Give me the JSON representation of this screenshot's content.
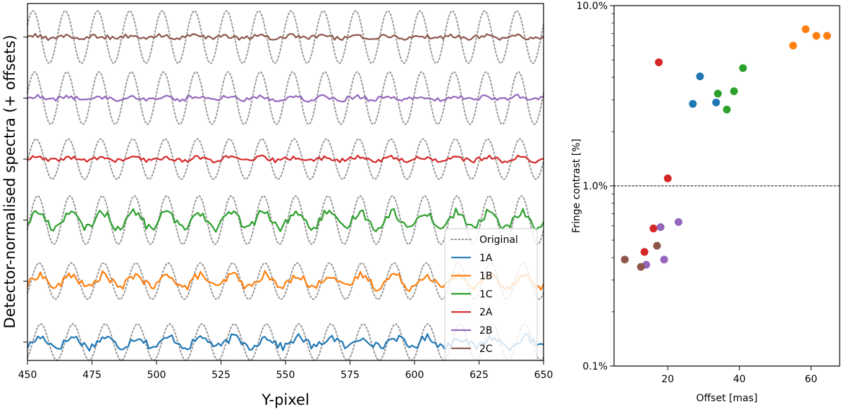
{
  "chart_data": [
    {
      "type": "line",
      "xlabel": "Y-pixel",
      "ylabel": "Detector-normalised spectra (+ offsets)",
      "xlim": [
        450,
        650
      ],
      "xticks": [
        450,
        475,
        500,
        525,
        550,
        575,
        600,
        625,
        650
      ],
      "yticks_labeled": false,
      "fringe_period_pixels": 12.5,
      "legend_position": "lower-right",
      "legend_items": [
        {
          "label": "Original",
          "color": "#999999",
          "style": "dotted"
        },
        {
          "label": "1A",
          "color": "#1f77b4",
          "style": "solid"
        },
        {
          "label": "1B",
          "color": "#ff7f0e",
          "style": "solid"
        },
        {
          "label": "1C",
          "color": "#2ca02c",
          "style": "solid"
        },
        {
          "label": "2A",
          "color": "#d62728",
          "style": "solid"
        },
        {
          "label": "2B",
          "color": "#9467bd",
          "style": "solid"
        },
        {
          "label": "2C",
          "color": "#8c564b",
          "style": "solid"
        }
      ],
      "series": [
        {
          "name": "1A",
          "offset": 0,
          "original_amplitude": 0.045,
          "corrected_amplitude": 0.012,
          "color": "#1f77b4"
        },
        {
          "name": "1B",
          "offset": 1,
          "original_amplitude": 0.045,
          "corrected_amplitude": 0.016,
          "color": "#ff7f0e"
        },
        {
          "name": "1C",
          "offset": 2,
          "original_amplitude": 0.06,
          "corrected_amplitude": 0.02,
          "color": "#2ca02c"
        },
        {
          "name": "2A",
          "offset": 3,
          "original_amplitude": 0.05,
          "corrected_amplitude": 0.004,
          "color": "#d62728"
        },
        {
          "name": "2B",
          "offset": 4,
          "original_amplitude": 0.065,
          "corrected_amplitude": 0.004,
          "color": "#9467bd"
        },
        {
          "name": "2C",
          "offset": 5,
          "original_amplitude": 0.065,
          "corrected_amplitude": 0.003,
          "color": "#8c564b"
        }
      ]
    },
    {
      "type": "scatter",
      "xlabel": "Offset [mas]",
      "ylabel": "Fringe contrast [%]",
      "xlim": [
        5,
        68
      ],
      "ylim": [
        0.1,
        10
      ],
      "yscale": "log",
      "xticks": [
        20,
        40,
        60
      ],
      "yticks": [
        {
          "value": 0.1,
          "label": "0.1%"
        },
        {
          "value": 1,
          "label": "1.0%"
        },
        {
          "value": 10,
          "label": "10.0%"
        }
      ],
      "reference_line": {
        "y": 1.0,
        "style": "dotted",
        "color": "#808080"
      },
      "series": [
        {
          "name": "1A",
          "color": "#1f77b4",
          "points": [
            [
              27,
              2.85
            ],
            [
              29,
              4.05
            ],
            [
              33.5,
              2.9
            ]
          ]
        },
        {
          "name": "1B",
          "color": "#ff7f0e",
          "points": [
            [
              55,
              6.0
            ],
            [
              58.5,
              7.4
            ],
            [
              61.5,
              6.8
            ],
            [
              64.5,
              6.8
            ]
          ]
        },
        {
          "name": "1C",
          "color": "#2ca02c",
          "points": [
            [
              34,
              3.25
            ],
            [
              36.5,
              2.65
            ],
            [
              38.5,
              3.35
            ],
            [
              41,
              4.5
            ]
          ]
        },
        {
          "name": "2A",
          "color": "#d62728",
          "points": [
            [
              17.5,
              4.85
            ],
            [
              20,
              1.1
            ],
            [
              16,
              0.58
            ],
            [
              13.5,
              0.43
            ]
          ]
        },
        {
          "name": "2B",
          "color": "#9467bd",
          "points": [
            [
              18,
              0.59
            ],
            [
              23,
              0.63
            ],
            [
              19,
              0.39
            ],
            [
              14,
              0.365
            ]
          ]
        },
        {
          "name": "2C",
          "color": "#8c564b",
          "points": [
            [
              8,
              0.39
            ],
            [
              12.5,
              0.355
            ],
            [
              17,
              0.465
            ]
          ]
        }
      ]
    }
  ]
}
